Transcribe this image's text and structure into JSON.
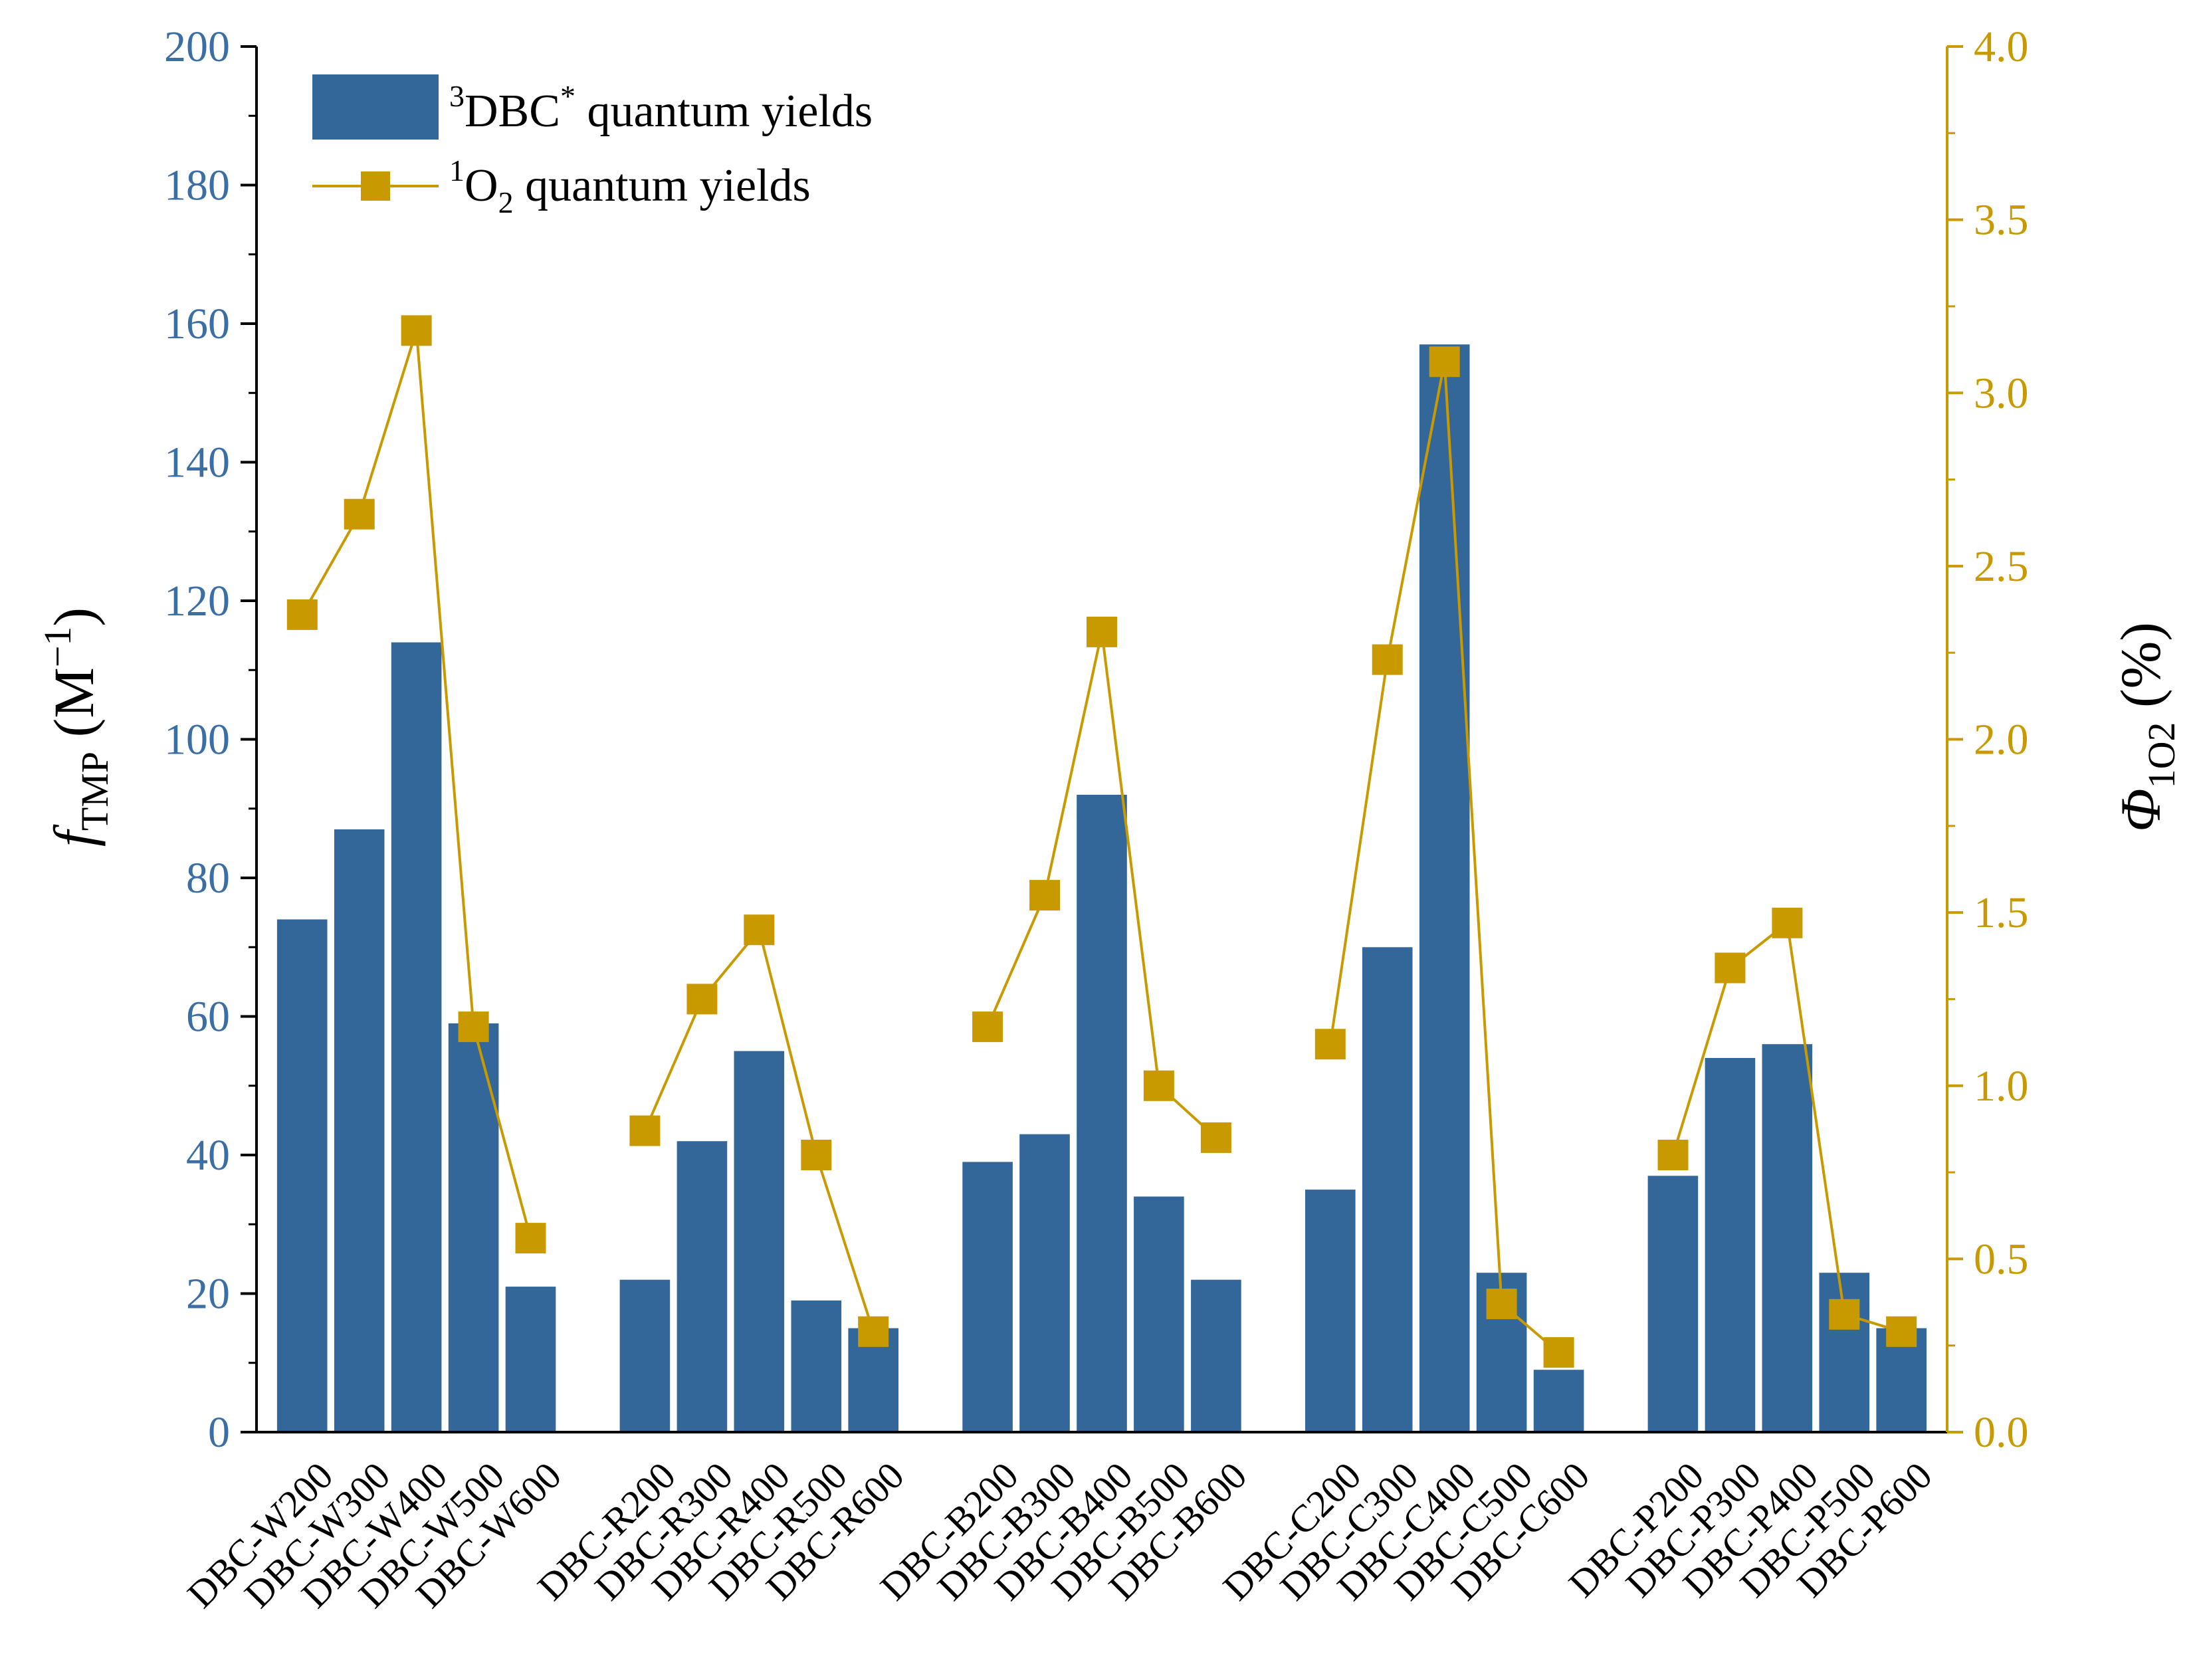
{
  "colors": {
    "bar": "#336699",
    "line": "#C99A00",
    "left_axis": "#3A6EA5",
    "right_axis": "#C99A00",
    "axis_line": "#000000"
  },
  "chart_data": {
    "type": "bar+line",
    "categories": [
      "DBC-W200",
      "DBC-W300",
      "DBC-W400",
      "DBC-W500",
      "DBC-W600",
      "DBC-R200",
      "DBC-R300",
      "DBC-R400",
      "DBC-R500",
      "DBC-R600",
      "DBC-B200",
      "DBC-B300",
      "DBC-B400",
      "DBC-B500",
      "DBC-B600",
      "DBC-C200",
      "DBC-C300",
      "DBC-C400",
      "DBC-C500",
      "DBC-C600",
      "DBC-P200",
      "DBC-P300",
      "DBC-P400",
      "DBC-P500",
      "DBC-P600"
    ],
    "groups": [
      {
        "name": "W",
        "size": 5
      },
      {
        "name": "R",
        "size": 5
      },
      {
        "name": "B",
        "size": 5
      },
      {
        "name": "C",
        "size": 5
      },
      {
        "name": "P",
        "size": 5
      }
    ],
    "series": [
      {
        "name": "3DBC* quantum yields",
        "kind": "bar",
        "axis": "left",
        "values": [
          74,
          87,
          114,
          59,
          21,
          22,
          42,
          55,
          19,
          15,
          39,
          43,
          92,
          34,
          22,
          35,
          70,
          157,
          23,
          9,
          37,
          54,
          56,
          23,
          15
        ]
      },
      {
        "name": "1O2 quantum yields",
        "kind": "line",
        "axis": "right",
        "values": [
          2.36,
          2.65,
          3.18,
          1.17,
          0.56,
          0.87,
          1.25,
          1.45,
          0.8,
          0.29,
          1.17,
          1.55,
          2.31,
          1.0,
          0.85,
          1.12,
          2.23,
          3.09,
          0.37,
          0.23,
          0.8,
          1.34,
          1.47,
          0.34,
          0.29
        ]
      }
    ],
    "y_left": {
      "label_main": "f",
      "label_sub": "TMP",
      "label_unit_open": " (M",
      "label_unit_sup": "−1",
      "label_unit_close": ")",
      "lim": [
        0,
        200
      ],
      "ticks": [
        0,
        20,
        40,
        60,
        80,
        100,
        120,
        140,
        160,
        180,
        200
      ],
      "tick_labels": [
        "0",
        "20",
        "40",
        "60",
        "80",
        "100",
        "120",
        "140",
        "160",
        "180",
        "200"
      ]
    },
    "y_right": {
      "label_main": "Φ",
      "label_sub": "1O2",
      "label_unit": " (%)",
      "lim": [
        0,
        4.0
      ],
      "ticks": [
        0,
        0.5,
        1.0,
        1.5,
        2.0,
        2.5,
        3.0,
        3.5,
        4.0
      ],
      "tick_labels": [
        "0.0",
        "0.5",
        "1.0",
        "1.5",
        "2.0",
        "2.5",
        "3.0",
        "3.5",
        "4.0"
      ]
    },
    "legend": {
      "position": "top-left",
      "bar_entry": {
        "sup": "3",
        "main": "DBC",
        "sup2": "*",
        "rest": " quantum yields"
      },
      "line_entry": {
        "sup": "1",
        "main": "O",
        "sub": "2",
        "rest": " quantum yields"
      }
    },
    "grid": false
  }
}
